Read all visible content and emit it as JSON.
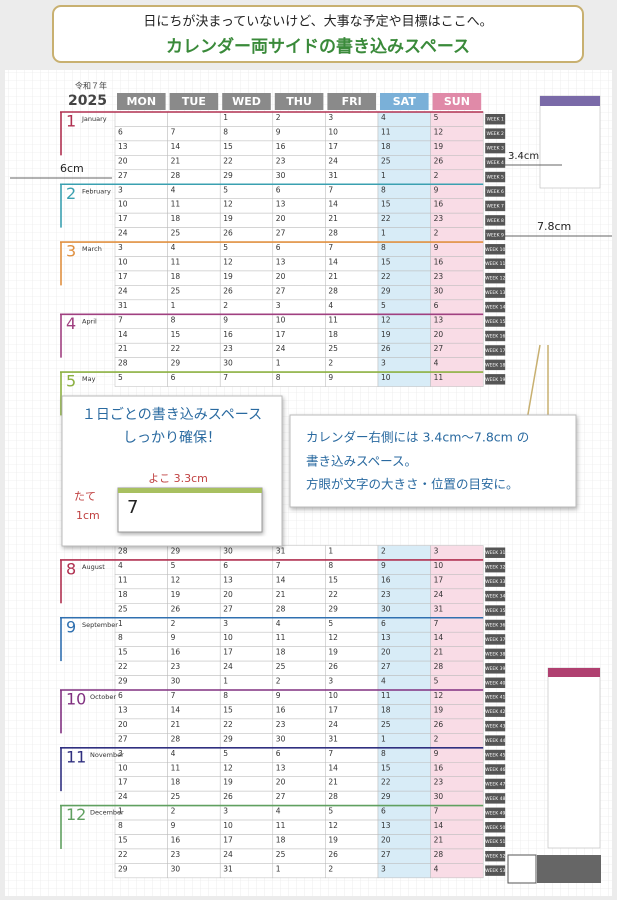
{
  "header": {
    "line1": "日にちが決まっていないけど、大事な予定や目標はここへ。",
    "line2": "カレンダー両サイドの書き込みスペース"
  },
  "era": "令和７年",
  "year": "2025",
  "weekdays": [
    {
      "label": "MON",
      "color": "#8a8a8a"
    },
    {
      "label": "TUE",
      "color": "#8a8a8a"
    },
    {
      "label": "WED",
      "color": "#8a8a8a"
    },
    {
      "label": "THU",
      "color": "#8a8a8a"
    },
    {
      "label": "FRI",
      "color": "#8a8a8a"
    },
    {
      "label": "SAT",
      "color": "#7ab0d8"
    },
    {
      "label": "SUN",
      "color": "#e08aa8"
    }
  ],
  "weeks_top": [
    {
      "label": "WEEK 1",
      "days": [
        null,
        null,
        1,
        2,
        3,
        4,
        5
      ],
      "month": {
        "number": "1",
        "name": "January",
        "color": "#b03050"
      }
    },
    {
      "label": "WEEK 2",
      "days": [
        6,
        7,
        8,
        9,
        10,
        11,
        12
      ]
    },
    {
      "label": "WEEK 3",
      "days": [
        13,
        14,
        15,
        16,
        17,
        18,
        19
      ]
    },
    {
      "label": "WEEK 4",
      "days": [
        20,
        21,
        22,
        23,
        24,
        25,
        26
      ]
    },
    {
      "label": "WEEK 5",
      "days": [
        27,
        28,
        29,
        30,
        31,
        1,
        2
      ]
    },
    {
      "label": "WEEK 6",
      "days": [
        3,
        4,
        5,
        6,
        7,
        8,
        9
      ],
      "month": {
        "number": "2",
        "name": "February",
        "color": "#3aa0b0"
      }
    },
    {
      "label": "WEEK 7",
      "days": [
        10,
        11,
        12,
        13,
        14,
        15,
        16
      ]
    },
    {
      "label": "WEEK 8",
      "days": [
        17,
        18,
        19,
        20,
        21,
        22,
        23
      ]
    },
    {
      "label": "WEEK 9",
      "days": [
        24,
        25,
        26,
        27,
        28,
        1,
        2
      ]
    },
    {
      "label": "WEEK 10",
      "days": [
        3,
        4,
        5,
        6,
        7,
        8,
        9
      ],
      "month": {
        "number": "3",
        "name": "March",
        "color": "#e09040"
      }
    },
    {
      "label": "WEEK 11",
      "days": [
        10,
        11,
        12,
        13,
        14,
        15,
        16
      ]
    },
    {
      "label": "WEEK 12",
      "days": [
        17,
        18,
        19,
        20,
        21,
        22,
        23
      ]
    },
    {
      "label": "WEEK 13",
      "days": [
        24,
        25,
        26,
        27,
        28,
        29,
        30
      ]
    },
    {
      "label": "WEEK 14",
      "days": [
        31,
        1,
        2,
        3,
        4,
        5,
        6
      ]
    },
    {
      "label": "WEEK 15",
      "days": [
        7,
        8,
        9,
        10,
        11,
        12,
        13
      ],
      "month": {
        "number": "4",
        "name": "April",
        "color": "#a04080"
      }
    },
    {
      "label": "WEEK 16",
      "days": [
        14,
        15,
        16,
        17,
        18,
        19,
        20
      ]
    },
    {
      "label": "WEEK 17",
      "days": [
        21,
        22,
        23,
        24,
        25,
        26,
        27
      ]
    },
    {
      "label": "WEEK 18",
      "days": [
        28,
        29,
        30,
        1,
        2,
        3,
        4
      ]
    },
    {
      "label": "WEEK 19",
      "days": [
        5,
        6,
        7,
        8,
        9,
        10,
        11
      ],
      "month": {
        "number": "5",
        "name": "May",
        "color": "#8cb040"
      }
    }
  ],
  "weeks_bottom": [
    {
      "label": "WEEK 31",
      "days": [
        28,
        29,
        30,
        31,
        1,
        2,
        3
      ]
    },
    {
      "label": "WEEK 32",
      "days": [
        4,
        5,
        6,
        7,
        8,
        9,
        10
      ],
      "month": {
        "number": "8",
        "name": "August",
        "color": "#b03050"
      }
    },
    {
      "label": "WEEK 33",
      "days": [
        11,
        12,
        13,
        14,
        15,
        16,
        17
      ]
    },
    {
      "label": "WEEK 34",
      "days": [
        18,
        19,
        20,
        21,
        22,
        23,
        24
      ]
    },
    {
      "label": "WEEK 35",
      "days": [
        25,
        26,
        27,
        28,
        29,
        30,
        31
      ]
    },
    {
      "label": "WEEK 36",
      "days": [
        1,
        2,
        3,
        4,
        5,
        6,
        7
      ],
      "month": {
        "number": "9",
        "name": "September",
        "color": "#3070b0"
      }
    },
    {
      "label": "WEEK 37",
      "days": [
        8,
        9,
        10,
        11,
        12,
        13,
        14
      ]
    },
    {
      "label": "WEEK 38",
      "days": [
        15,
        16,
        17,
        18,
        19,
        20,
        21
      ]
    },
    {
      "label": "WEEK 39",
      "days": [
        22,
        23,
        24,
        25,
        26,
        27,
        28
      ]
    },
    {
      "label": "WEEK 40",
      "days": [
        29,
        30,
        1,
        2,
        3,
        4,
        5
      ]
    },
    {
      "label": "WEEK 41",
      "days": [
        6,
        7,
        8,
        9,
        10,
        11,
        12
      ],
      "month": {
        "number": "10",
        "name": "October",
        "color": "#803080"
      }
    },
    {
      "label": "WEEK 42",
      "days": [
        13,
        14,
        15,
        16,
        17,
        18,
        19
      ]
    },
    {
      "label": "WEEK 43",
      "days": [
        20,
        21,
        22,
        23,
        24,
        25,
        26
      ]
    },
    {
      "label": "WEEK 44",
      "days": [
        27,
        28,
        29,
        30,
        31,
        1,
        2
      ]
    },
    {
      "label": "WEEK 45",
      "days": [
        3,
        4,
        5,
        6,
        7,
        8,
        9
      ],
      "month": {
        "number": "11",
        "name": "November",
        "color": "#303080"
      }
    },
    {
      "label": "WEEK 46",
      "days": [
        10,
        11,
        12,
        13,
        14,
        15,
        16
      ]
    },
    {
      "label": "WEEK 47",
      "days": [
        17,
        18,
        19,
        20,
        21,
        22,
        23
      ]
    },
    {
      "label": "WEEK 48",
      "days": [
        24,
        25,
        26,
        27,
        28,
        29,
        30
      ]
    },
    {
      "label": "WEEK 49",
      "days": [
        1,
        2,
        3,
        4,
        5,
        6,
        7
      ],
      "month": {
        "number": "12",
        "name": "December",
        "color": "#60a060"
      }
    },
    {
      "label": "WEEK 50",
      "days": [
        8,
        9,
        10,
        11,
        12,
        13,
        14
      ]
    },
    {
      "label": "WEEK 51",
      "days": [
        15,
        16,
        17,
        18,
        19,
        20,
        21
      ]
    },
    {
      "label": "WEEK 52",
      "days": [
        22,
        23,
        24,
        25,
        26,
        27,
        28
      ]
    },
    {
      "label": "WEEK 53",
      "days": [
        29,
        30,
        31,
        1,
        2,
        3,
        4
      ]
    }
  ],
  "dimensions": {
    "left": "6cm",
    "right_min": "3.4cm",
    "right_max": "7.8cm"
  },
  "callout_left": {
    "line1": "１日ごとの書き込みスペース",
    "line2": "しっかり確保！",
    "width": "よこ 3.3cm",
    "height_label": "たて",
    "height": "1cm",
    "sample_day": "7"
  },
  "callout_right": {
    "line1": "カレンダー右側には 3.4cm〜7.8cm の",
    "line2": "書き込みスペース。",
    "line3": "方眼が文字の大きさ・位置の目安に。"
  }
}
